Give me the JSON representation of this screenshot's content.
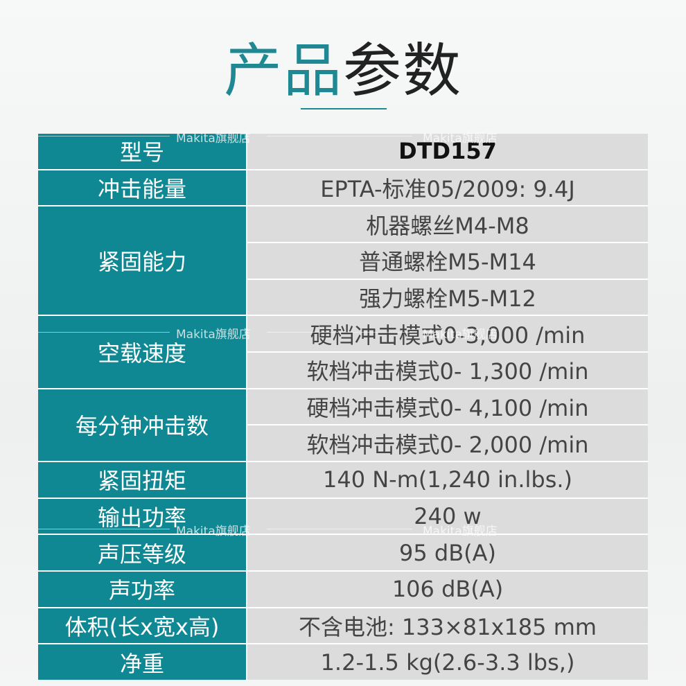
{
  "title": {
    "part1": "产品",
    "part2": "参数"
  },
  "watermark": "Makita旗舰店",
  "rows": [
    {
      "label": "型号",
      "values": [
        "DTD157"
      ]
    },
    {
      "label": "冲击能量",
      "values": [
        "EPTA-标准05/2009: 9.4J"
      ]
    },
    {
      "label": "紧固能力",
      "values": [
        "机器螺丝M4-M8",
        "普通螺栓M5-M14",
        "强力螺栓M5-M12"
      ]
    },
    {
      "label": "空载速度",
      "values": [
        "硬档冲击模式0-3,000 /min",
        "软档冲击模式0- 1,300 /min"
      ]
    },
    {
      "label": "每分钟冲击数",
      "values": [
        "硬档冲击模式0- 4,100 /min",
        "软档冲击模式0- 2,000 /min"
      ]
    },
    {
      "label": "紧固扭矩",
      "values": [
        "140 N-m(1,240 in.lbs.)"
      ]
    },
    {
      "label": "输出功率",
      "values": [
        "240 w"
      ]
    },
    {
      "label": "声压等级",
      "values": [
        "95 dB(A)"
      ]
    },
    {
      "label": "声功率",
      "values": [
        "106 dB(A)"
      ]
    },
    {
      "label": "体积(长x宽x高)",
      "values": [
        "不含电池: 133×81x185 mm"
      ]
    },
    {
      "label": "净重",
      "values": [
        "1.2-1.5 kg(2.6-3.3 lbs,)"
      ]
    }
  ]
}
